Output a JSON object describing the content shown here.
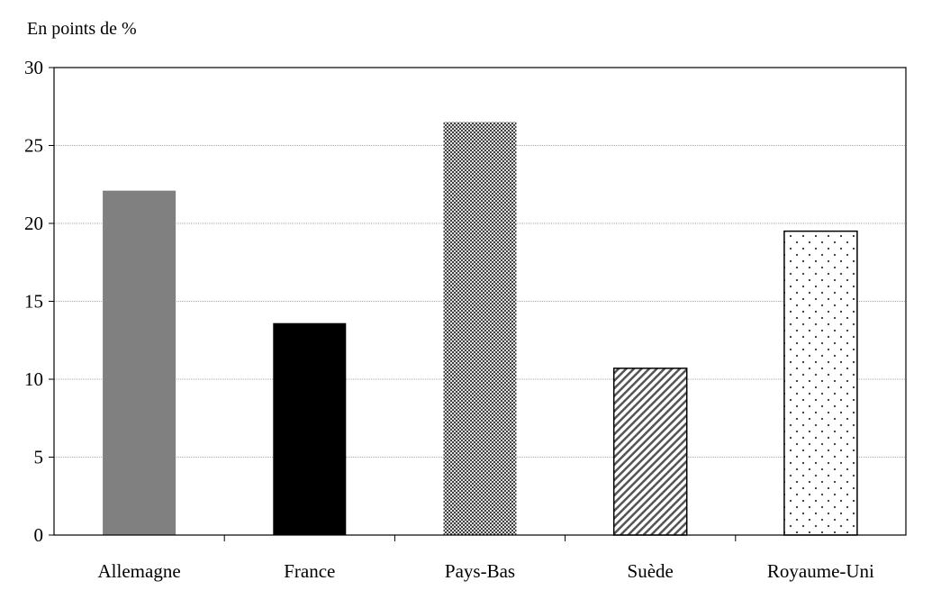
{
  "chart_data": {
    "type": "bar",
    "unit_label": "En points de %",
    "categories": [
      "Allemagne",
      "France",
      "Pays-Bas",
      "Suède",
      "Royaume-Uni"
    ],
    "values": [
      22.1,
      13.6,
      26.5,
      10.7,
      19.5
    ],
    "ylim": [
      0,
      30
    ],
    "yticks": [
      "0",
      "5",
      "10",
      "15",
      "20",
      "25",
      "30"
    ],
    "grid": true,
    "legend": "none",
    "bar_styles": [
      {
        "fill": "#808080",
        "pattern": "solid",
        "border": "none"
      },
      {
        "fill": "#000000",
        "pattern": "solid",
        "border": "none"
      },
      {
        "fill": "#808080",
        "pattern": "checkered",
        "border": "none"
      },
      {
        "fill": "#ffffff",
        "pattern": "diagonal-stripes",
        "border": "#000000"
      },
      {
        "fill": "#ffffff",
        "pattern": "dots",
        "border": "#000000"
      }
    ]
  }
}
